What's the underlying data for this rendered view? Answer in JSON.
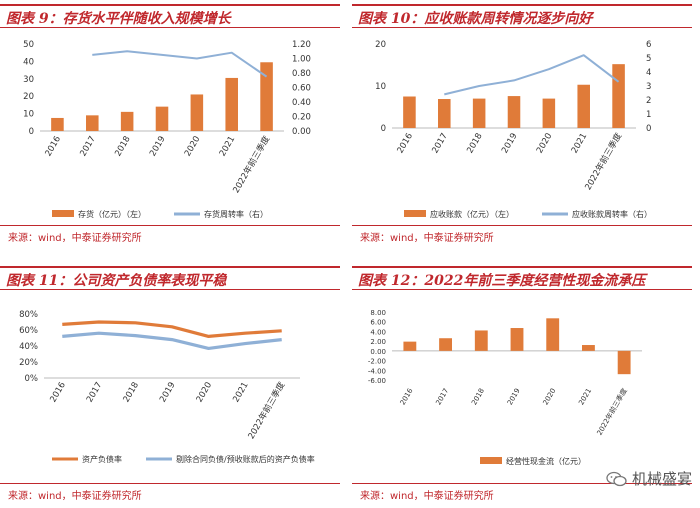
{
  "panels": [
    {
      "id": "p9",
      "title": "图表 9：存货水平伴随收入规模增长",
      "source": "来源：wind，中泰证券研究所",
      "chart_data": {
        "type": "bar+line",
        "categories": [
          "2016",
          "2017",
          "2018",
          "2019",
          "2020",
          "2021",
          "2022年前三季度"
        ],
        "series": [
          {
            "name": "存货（亿元）（左）",
            "type": "bar",
            "axis": "left",
            "color": "#e07b39",
            "values": [
              7.5,
              9,
              11,
              14,
              21,
              30.5,
              39.5
            ]
          },
          {
            "name": "存货周转率（右）",
            "type": "line",
            "axis": "right",
            "color": "#8fb0d6",
            "values": [
              null,
              1.05,
              1.1,
              1.05,
              1.0,
              1.08,
              0.75
            ]
          }
        ],
        "y_left": {
          "min": 0,
          "max": 50,
          "ticks": [
            "0",
            "10",
            "20",
            "30",
            "40",
            "50"
          ]
        },
        "y_right": {
          "min": 0,
          "max": 1.2,
          "ticks": [
            "0.00",
            "0.20",
            "0.40",
            "0.60",
            "0.80",
            "1.00",
            "1.20"
          ]
        },
        "legend": "bottom"
      }
    },
    {
      "id": "p10",
      "title": "图表 10：应收账款周转情况逐步向好",
      "source": "来源：wind，中泰证券研究所",
      "chart_data": {
        "type": "bar+line",
        "categories": [
          "2016",
          "2017",
          "2018",
          "2019",
          "2020",
          "2021",
          "2022年前三季度"
        ],
        "series": [
          {
            "name": "应收账款（亿元）（左）",
            "type": "bar",
            "axis": "left",
            "color": "#e07b39",
            "values": [
              7.5,
              6.9,
              7.0,
              7.6,
              7.0,
              10.3,
              15.2
            ]
          },
          {
            "name": "应收账款周转率（右）",
            "type": "line",
            "axis": "right",
            "color": "#8fb0d6",
            "values": [
              null,
              2.4,
              3.0,
              3.4,
              4.2,
              5.2,
              3.3
            ]
          }
        ],
        "y_left": {
          "min": 0,
          "max": 20,
          "ticks": [
            "0",
            "10",
            "20"
          ]
        },
        "y_right": {
          "min": 0,
          "max": 6,
          "ticks": [
            "0",
            "1",
            "2",
            "3",
            "4",
            "5",
            "6"
          ]
        },
        "legend": "bottom"
      }
    },
    {
      "id": "p11",
      "title": "图表 11：公司资产负债率表现平稳",
      "source": "来源：wind，中泰证券研究所",
      "chart_data": {
        "type": "line",
        "categories": [
          "2016",
          "2017",
          "2018",
          "2019",
          "2020",
          "2021",
          "2022年前三季度"
        ],
        "series": [
          {
            "name": "资产负债率",
            "axis": "left",
            "color": "#e07b39",
            "values": [
              67,
              70,
              69,
              64,
              52,
              56,
              59
            ]
          },
          {
            "name": "剔除合同负债/预收账款后的资产负债率",
            "axis": "left",
            "color": "#8fb0d6",
            "values": [
              52,
              56,
              53,
              48,
              37,
              43,
              48
            ]
          }
        ],
        "y_left": {
          "min": 0,
          "max": 80,
          "ticks": [
            "0%",
            "20%",
            "40%",
            "60%",
            "80%"
          ]
        },
        "legend": "bottom"
      }
    },
    {
      "id": "p12",
      "title": "图表 12：2022年前三季度经营性现金流承压",
      "source": "来源：wind，中泰证券研究所",
      "chart_data": {
        "type": "bar",
        "categories": [
          "2016",
          "2017",
          "2018",
          "2019",
          "2020",
          "2021",
          "2022年前三季度"
        ],
        "series": [
          {
            "name": "经营性现金流（亿元）",
            "type": "bar",
            "axis": "left",
            "color": "#e07b39",
            "values": [
              1.9,
              2.6,
              4.2,
              4.7,
              6.7,
              1.2,
              -4.8
            ]
          }
        ],
        "y_left": {
          "min": -6,
          "max": 8,
          "ticks": [
            "-6.00",
            "-4.00",
            "-2.00",
            "0.00",
            "2.00",
            "4.00",
            "6.00",
            "8.00"
          ]
        },
        "legend": "bottom"
      }
    }
  ],
  "watermark": {
    "text": "机械盛宴",
    "icon": "wechat-icon"
  }
}
